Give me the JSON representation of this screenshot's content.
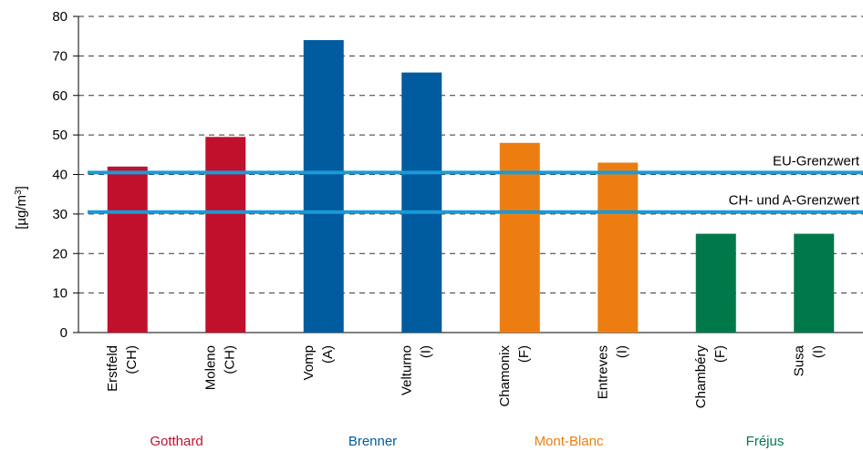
{
  "chart_data": {
    "type": "bar",
    "ylabel": "[µg/m3]",
    "ylabel_base": "[µg/m",
    "ylabel_sup": "3",
    "ylabel_close": "]",
    "ylim": [
      0,
      80
    ],
    "yticks": [
      0,
      10,
      20,
      30,
      40,
      50,
      60,
      70,
      80
    ],
    "grid": "horizontal-dashed",
    "categories": [
      {
        "station": "Erstfeld",
        "country": "(CH)",
        "group": "Gotthard"
      },
      {
        "station": "Moleno",
        "country": "(CH)",
        "group": "Gotthard"
      },
      {
        "station": "Vomp",
        "country": "(A)",
        "group": "Brenner"
      },
      {
        "station": "Velturno",
        "country": "(I)",
        "group": "Brenner"
      },
      {
        "station": "Chamonix",
        "country": "(F)",
        "group": "Mont-Blanc"
      },
      {
        "station": "Entreves",
        "country": "(I)",
        "group": "Mont-Blanc"
      },
      {
        "station": "Chambéry",
        "country": "(F)",
        "group": "Fréjus"
      },
      {
        "station": "Susa",
        "country": "(I)",
        "group": "Fréjus"
      }
    ],
    "values": [
      42,
      49.5,
      74,
      65.8,
      48,
      43,
      25,
      25
    ],
    "groups": [
      {
        "name": "Gotthard",
        "color": "#c0102c"
      },
      {
        "name": "Brenner",
        "color": "#005b9f"
      },
      {
        "name": "Mont-Blanc",
        "color": "#ee7d11"
      },
      {
        "name": "Fréjus",
        "color": "#00784a"
      }
    ],
    "reference_lines": [
      {
        "label": "EU-Grenzwert",
        "value": 40.5,
        "color": "#1a9ad6"
      },
      {
        "label": "CH- und A-Grenzwert",
        "value": 30.5,
        "color": "#1a9ad6"
      }
    ]
  }
}
